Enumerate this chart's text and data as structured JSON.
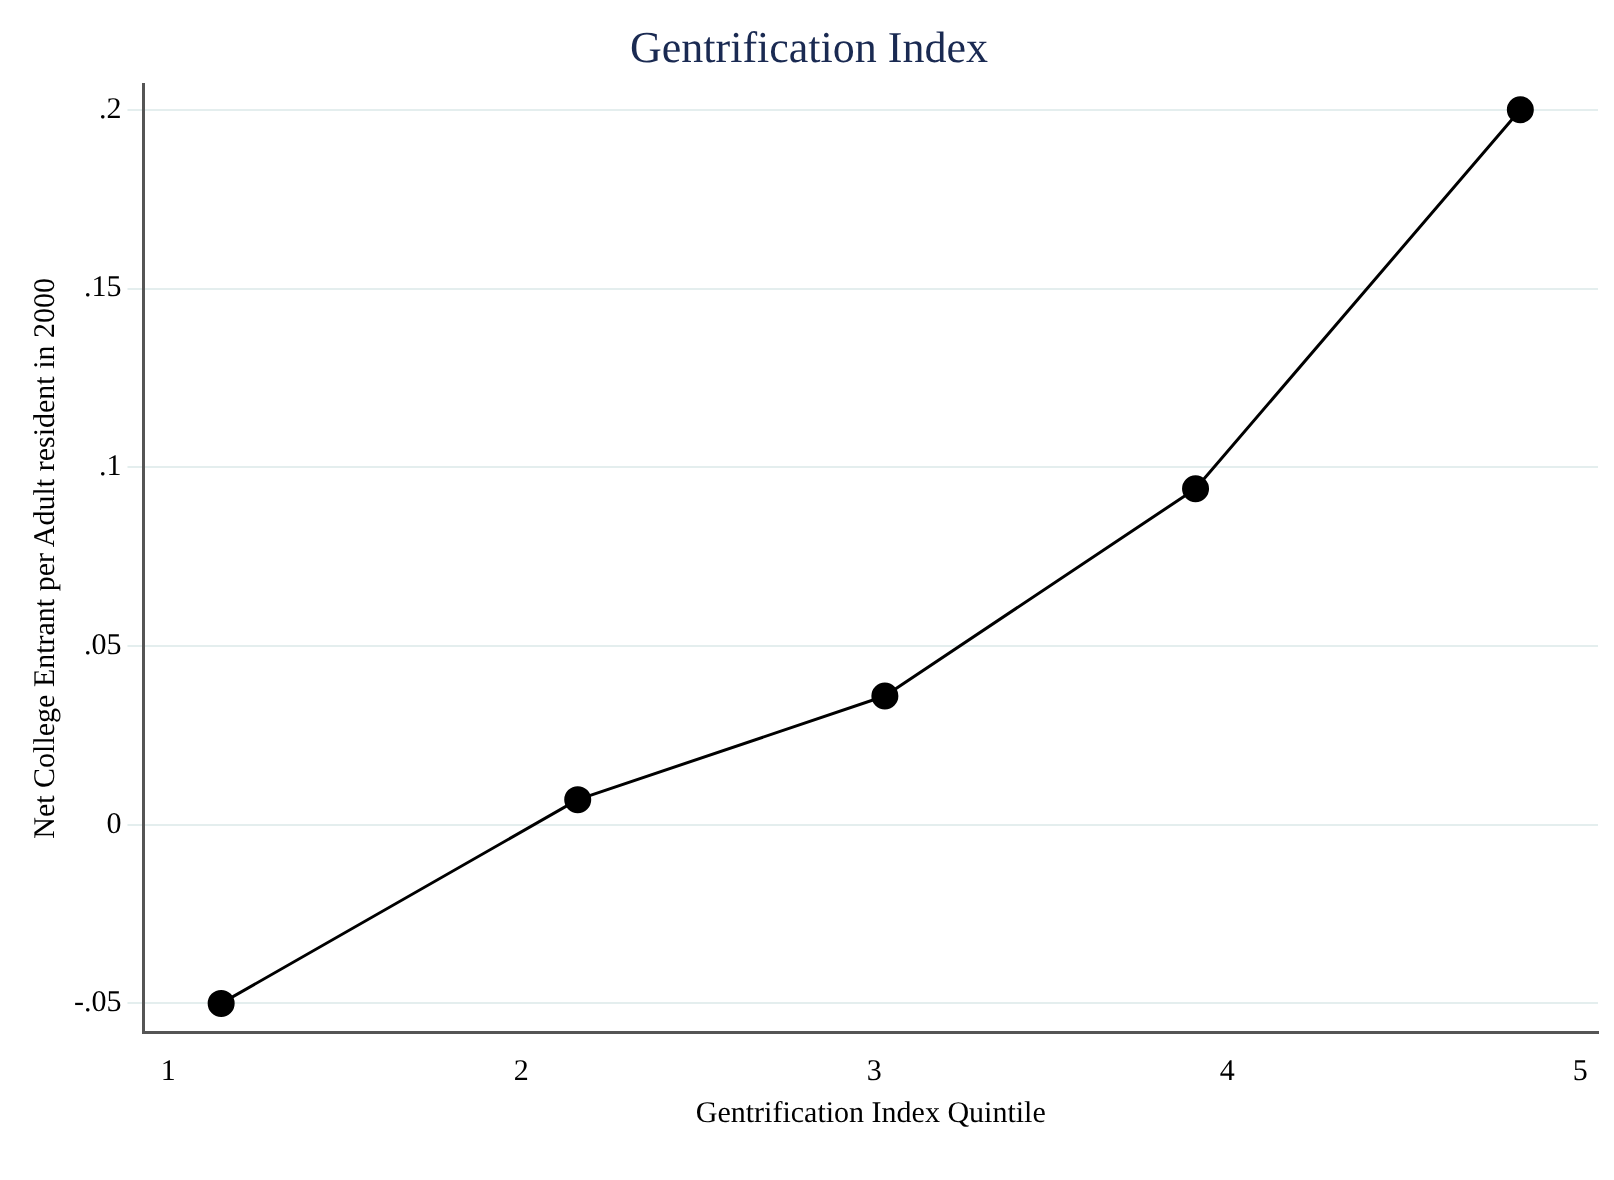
{
  "chart_data": {
    "type": "line",
    "title": "Gentrification Index",
    "xlabel": "Gentrification Index Quintile",
    "ylabel": "Net College Entrant per Adult resident in 2000",
    "x": [
      1.15,
      2.16,
      3.03,
      3.91,
      4.83
    ],
    "series": [
      {
        "color": "#000000",
        "values": [
          -0.05,
          0.007,
          0.036,
          0.094,
          0.2
        ]
      }
    ],
    "xlim": [
      0.93,
      5.05
    ],
    "xticks": [
      1,
      2,
      3,
      4,
      5
    ],
    "ylim": [
      -0.058,
      0.207
    ],
    "yticks": [
      {
        "value": -0.05,
        "label": "-.05"
      },
      {
        "value": 0,
        "label": "0"
      },
      {
        "value": 0.05,
        "label": ".05"
      },
      {
        "value": 0.1,
        "label": ".1"
      },
      {
        "value": 0.15,
        "label": ".15"
      },
      {
        "value": 0.2,
        "label": ".2"
      }
    ],
    "grid": "y",
    "legend": false,
    "marker": "circle",
    "line_style": "solid"
  }
}
